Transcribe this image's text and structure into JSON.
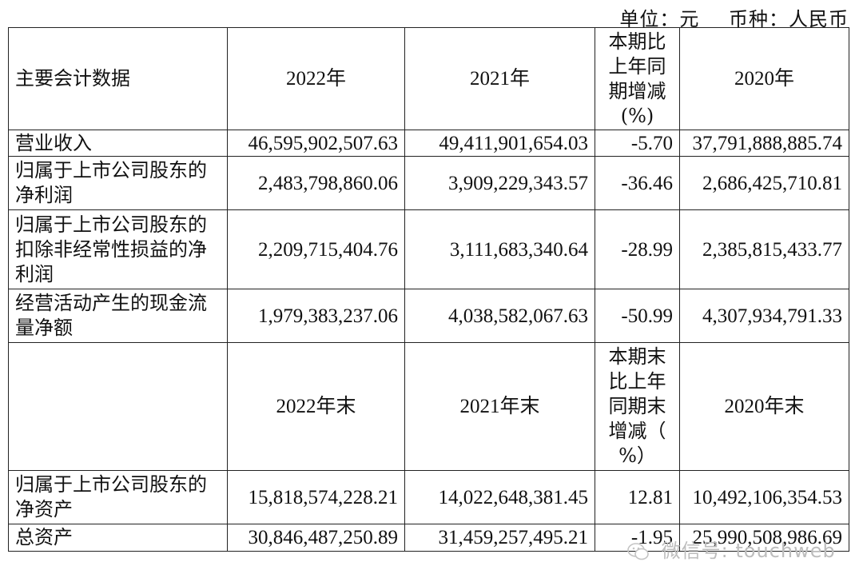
{
  "unit_line": {
    "unit": "单位：元",
    "currency": "币种：人民币"
  },
  "header1": {
    "label": "主要会计数据",
    "y2022": "2022年",
    "y2021": "2021年",
    "change": [
      "本期比",
      "上年同",
      "期增减",
      "(%)"
    ],
    "y2020": "2020年"
  },
  "rows1": [
    {
      "label": "营业收入",
      "v2022": "46,595,902,507.63",
      "v2021": "49,411,901,654.03",
      "change": "-5.70",
      "v2020": "37,791,888,885.74"
    },
    {
      "label": "归属于上市公司股东的净利润",
      "v2022": "2,483,798,860.06",
      "v2021": "3,909,229,343.57",
      "change": "-36.46",
      "v2020": "2,686,425,710.81"
    },
    {
      "label": "归属于上市公司股东的扣除非经常性损益的净利润",
      "v2022": "2,209,715,404.76",
      "v2021": "3,111,683,340.64",
      "change": "-28.99",
      "v2020": "2,385,815,433.77"
    },
    {
      "label": "经营活动产生的现金流量净额",
      "v2022": "1,979,383,237.06",
      "v2021": "4,038,582,067.63",
      "change": "-50.99",
      "v2020": "4,307,934,791.33"
    }
  ],
  "header2": {
    "label": "",
    "y2022": "2022年末",
    "y2021": "2021年末",
    "change": [
      "本期末",
      "比上年",
      "同期末",
      "增减（",
      "%）"
    ],
    "y2020": "2020年末"
  },
  "rows2": [
    {
      "label": "归属于上市公司股东的净资产",
      "v2022": "15,818,574,228.21",
      "v2021": "14,022,648,381.45",
      "change": "12.81",
      "v2020": "10,492,106,354.53"
    },
    {
      "label": "总资产",
      "v2022": "30,846,487,250.89",
      "v2021": "31,459,257,495.21",
      "change": "-1.95",
      "v2020": "25,990,508,986.69"
    }
  ],
  "watermark": {
    "text": "微信号: touchweb",
    "icon": "wechat-icon"
  }
}
